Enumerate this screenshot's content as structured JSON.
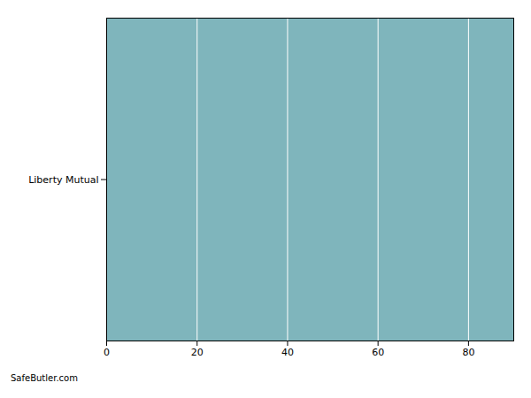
{
  "chart_data": {
    "type": "bar",
    "orientation": "horizontal",
    "categories": [
      "Liberty Mutual"
    ],
    "values": [
      90
    ],
    "color": "#7fb5bc",
    "xlim": [
      0,
      90
    ],
    "xticks": [
      0,
      20,
      40,
      60,
      80
    ],
    "grid": true,
    "annotation": "SafeButler.com"
  }
}
